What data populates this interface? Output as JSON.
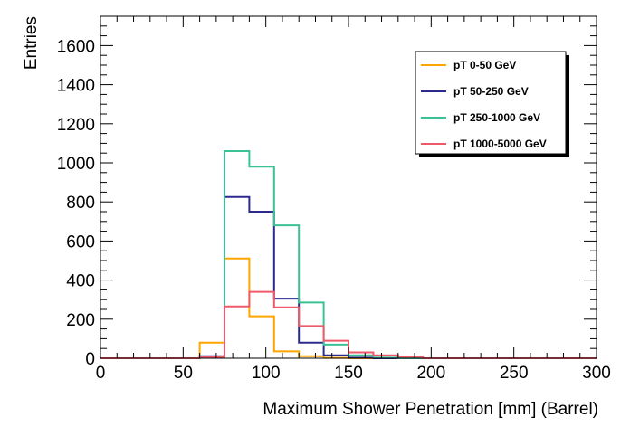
{
  "chart_data": {
    "type": "line",
    "step": true,
    "xlabel": "Maximum Shower Penetration [mm] (Barrel)",
    "ylabel": "Entries",
    "xlim": [
      0,
      300
    ],
    "ylim": [
      0,
      1750
    ],
    "x_ticks": [
      0,
      50,
      100,
      150,
      200,
      250,
      300
    ],
    "y_ticks": [
      0,
      200,
      400,
      600,
      800,
      1000,
      1200,
      1400,
      1600
    ],
    "x_tick_labels": [
      "0",
      "50",
      "100",
      "150",
      "200",
      "250",
      "300"
    ],
    "y_tick_labels": [
      "0",
      "200",
      "400",
      "600",
      "800",
      "1000",
      "1200",
      "1400",
      "1600"
    ],
    "bin_edges": [
      0,
      15,
      30,
      45,
      60,
      75,
      90,
      105,
      120,
      135,
      150,
      165,
      180,
      195,
      210,
      225,
      240,
      255,
      270,
      285,
      300
    ],
    "grid": false,
    "legend_position": "top-right",
    "series": [
      {
        "name": "pT 0-50 GeV",
        "color": "#ffa500",
        "values": [
          0,
          0,
          0,
          0,
          80,
          510,
          215,
          35,
          10,
          2,
          0,
          0,
          0,
          0,
          0,
          0,
          0,
          0,
          0,
          0
        ]
      },
      {
        "name": "pT 50-250 GeV",
        "color": "#2b2b8f",
        "values": [
          0,
          0,
          0,
          0,
          10,
          825,
          750,
          305,
          80,
          15,
          3,
          0,
          0,
          0,
          0,
          0,
          0,
          0,
          0,
          0
        ]
      },
      {
        "name": "pT 250-1000 GeV",
        "color": "#3cc096",
        "values": [
          0,
          0,
          0,
          0,
          5,
          1060,
          980,
          680,
          285,
          70,
          15,
          3,
          0,
          0,
          0,
          0,
          0,
          0,
          0,
          0
        ]
      },
      {
        "name": "pT 1000-5000 GeV",
        "color": "#ef5a6a",
        "values": [
          0,
          0,
          0,
          0,
          5,
          265,
          340,
          260,
          165,
          90,
          30,
          15,
          8,
          0,
          0,
          0,
          0,
          0,
          0,
          0
        ]
      }
    ]
  }
}
